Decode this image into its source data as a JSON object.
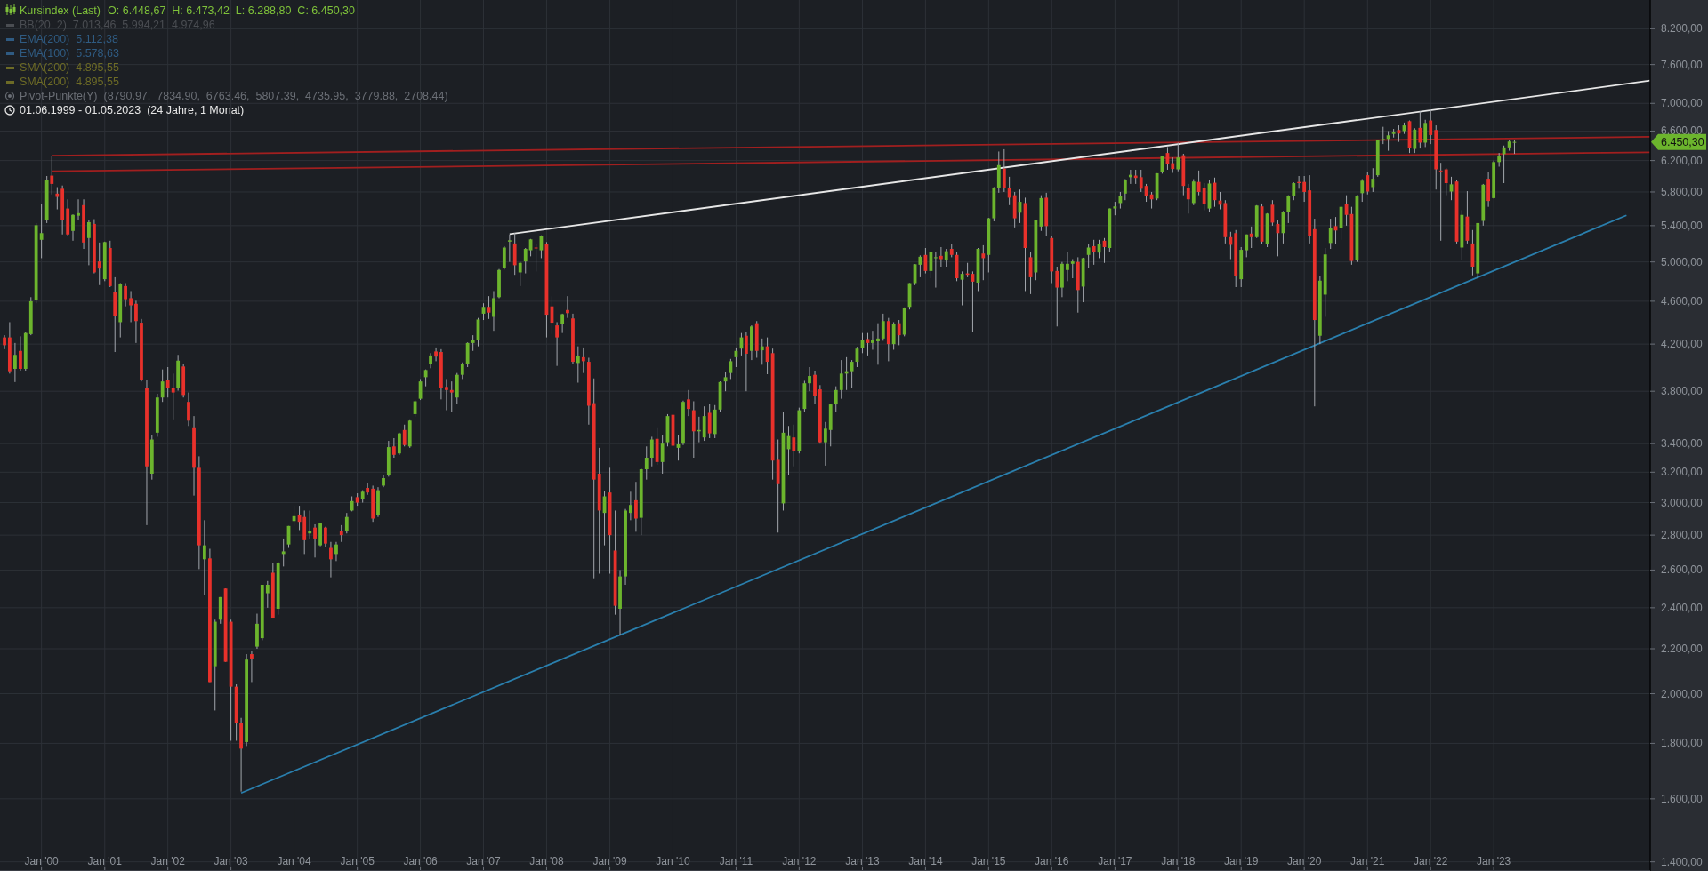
{
  "chart_data": {
    "type": "candlestick",
    "title": "Kursindex (Last)",
    "subtitle": "O: 6.448,67  H: 6.473,42  L: 6.288,80  C: 6.450,30",
    "log": true,
    "grid": true,
    "xlim": [
      "1999-05-06",
      "2025-06-24"
    ],
    "xticks": [
      {
        "value": "2000-01",
        "label": "Jan '00"
      },
      {
        "value": "2001-01",
        "label": "Jan '01"
      },
      {
        "value": "2002-01",
        "label": "Jan '02"
      },
      {
        "value": "2003-01",
        "label": "Jan '03"
      },
      {
        "value": "2004-01",
        "label": "Jan '04"
      },
      {
        "value": "2005-01",
        "label": "Jan '05"
      },
      {
        "value": "2006-01",
        "label": "Jan '06"
      },
      {
        "value": "2007-01",
        "label": "Jan '07"
      },
      {
        "value": "2008-01",
        "label": "Jan '08"
      },
      {
        "value": "2009-01",
        "label": "Jan '09"
      },
      {
        "value": "2010-01",
        "label": "Jan '10"
      },
      {
        "value": "2011-01",
        "label": "Jan '11"
      },
      {
        "value": "2012-01",
        "label": "Jan '12"
      },
      {
        "value": "2013-01",
        "label": "Jan '13"
      },
      {
        "value": "2014-01",
        "label": "Jan '14"
      },
      {
        "value": "2015-01",
        "label": "Jan '15"
      },
      {
        "value": "2016-01",
        "label": "Jan '16"
      },
      {
        "value": "2017-01",
        "label": "Jan '17"
      },
      {
        "value": "2018-01",
        "label": "Jan '18"
      },
      {
        "value": "2019-01",
        "label": "Jan '19"
      },
      {
        "value": "2020-01",
        "label": "Jan '20"
      },
      {
        "value": "2021-01",
        "label": "Jan '21"
      },
      {
        "value": "2022-01",
        "label": "Jan '22"
      },
      {
        "value": "2023-01",
        "label": "Jan '23"
      }
    ],
    "ylim": [
      1373,
      8716
    ],
    "yticks": [
      {
        "value": 1400,
        "label": "1.400,00"
      },
      {
        "value": 1600,
        "label": "1.600,00"
      },
      {
        "value": 1800,
        "label": "1.800,00"
      },
      {
        "value": 2000,
        "label": "2.000,00"
      },
      {
        "value": 2200,
        "label": "2.200,00"
      },
      {
        "value": 2400,
        "label": "2.400,00"
      },
      {
        "value": 2600,
        "label": "2.600,00"
      },
      {
        "value": 2800,
        "label": "2.800,00"
      },
      {
        "value": 3000,
        "label": "3.000,00"
      },
      {
        "value": 3200,
        "label": "3.200,00"
      },
      {
        "value": 3400,
        "label": "3.400,00"
      },
      {
        "value": 3800,
        "label": "3.800,00"
      },
      {
        "value": 4200,
        "label": "4.200,00"
      },
      {
        "value": 4600,
        "label": "4.600,00"
      },
      {
        "value": 5000,
        "label": "5.000,00"
      },
      {
        "value": 5400,
        "label": "5.400,00"
      },
      {
        "value": 5800,
        "label": "5.800,00"
      },
      {
        "value": 6200,
        "label": "6.200,00"
      },
      {
        "value": 6600,
        "label": "6.600,00"
      },
      {
        "value": 7000,
        "label": "7.000,00"
      },
      {
        "value": 7600,
        "label": "7.600,00"
      },
      {
        "value": 8200,
        "label": "8.200,00"
      }
    ],
    "annotations": [
      "BB(20, 2)  7.013,46  5.994,21  4.974,96",
      "EMA(200)  5.112,38",
      "EMA(100)  5.578,63",
      "SMA(200)  4.895,55",
      "SMA(200)  4.895,55",
      "Pivot-Punkte(Y)  (8790.97,  7834.90,  6763.46,  5807.39,  4735.95,  3779.88,  2708.44)",
      "01.06.1999 - 01.05.2023  (24 Jahre, 1 Monat)",
      "6.450,30"
    ],
    "series": [
      {
        "type": "line",
        "color": "#a11f1f",
        "x": [
          "2000-03",
          "2025-06-24"
        ],
        "values": [
          6265,
          6520
        ]
      },
      {
        "type": "line",
        "color": "#a11f1f",
        "x": [
          "2000-03",
          "2025-06-24"
        ],
        "values": [
          6060,
          6310
        ]
      },
      {
        "type": "line",
        "color": "#e6e6e6",
        "x": [
          "2007-06",
          "2025-06-24"
        ],
        "values": [
          5303,
          7346
        ]
      },
      {
        "type": "line",
        "color": "#2a7fad",
        "x": [
          "2003-03",
          "2025-02-07"
        ],
        "values": [
          1620,
          5520
        ]
      },
      {
        "color": "#6cb52d",
        "x": [
          "1999-08",
          "1999-10",
          "1999-11",
          "1999-12",
          "2000-01",
          "2000-02",
          "2000-07",
          "2000-08",
          "2000-10",
          "2001-01",
          "2001-04",
          "2001-10",
          "2001-11",
          "2001-12",
          "2002-03",
          "2002-08",
          "2002-10",
          "2002-11",
          "2003-04",
          "2003-06",
          "2003-07",
          "2003-08",
          "2003-10",
          "2003-11",
          "2003-12",
          "2004-01",
          "2004-04",
          "2004-06",
          "2004-09",
          "2004-11",
          "2004-12",
          "2005-02",
          "2005-05",
          "2005-06",
          "2005-07",
          "2005-09",
          "2005-11",
          "2005-12",
          "2006-01",
          "2006-02",
          "2006-03",
          "2006-08",
          "2006-09",
          "2006-10",
          "2006-11",
          "2006-12",
          "2007-01",
          "2007-03",
          "2007-04",
          "2007-05",
          "2007-06",
          "2007-08",
          "2007-09",
          "2007-10",
          "2007-12",
          "2008-04",
          "2008-07",
          "2008-12",
          "2009-03",
          "2009-04",
          "2009-05",
          "2009-07",
          "2009-08",
          "2009-09",
          "2009-11",
          "2009-12",
          "2010-02",
          "2010-03",
          "2010-06",
          "2010-07",
          "2010-09",
          "2010-10",
          "2010-11",
          "2010-12",
          "2011-01",
          "2011-02",
          "2011-04",
          "2011-06",
          "2011-10",
          "2011-11",
          "2012-01",
          "2012-02",
          "2012-03",
          "2012-06",
          "2012-07",
          "2012-08",
          "2012-09",
          "2012-10",
          "2012-11",
          "2012-12",
          "2013-01",
          "2013-03",
          "2013-04",
          "2013-05",
          "2013-07",
          "2013-09",
          "2013-10",
          "2013-11",
          "2013-12",
          "2014-02",
          "2014-03",
          "2014-05",
          "2014-08",
          "2014-11",
          "2015-01",
          "2015-02",
          "2015-03",
          "2015-07",
          "2015-10",
          "2015-11",
          "2016-03",
          "2016-04",
          "2016-05",
          "2016-07",
          "2016-08",
          "2016-10",
          "2016-12",
          "2017-01",
          "2017-02",
          "2017-03",
          "2017-04",
          "2017-09",
          "2017-10",
          "2018-01",
          "2018-04",
          "2018-07",
          "2019-01",
          "2019-02",
          "2019-04",
          "2019-06",
          "2019-09",
          "2019-10",
          "2019-11",
          "2020-04",
          "2020-05",
          "2020-06",
          "2020-08",
          "2020-11",
          "2020-12",
          "2021-02",
          "2021-03",
          "2021-04",
          "2021-05",
          "2021-06",
          "2021-08",
          "2021-10",
          "2021-12",
          "2022-05",
          "2022-07",
          "2022-10",
          "2022-11",
          "2023-01",
          "2023-02",
          "2023-03",
          "2023-04",
          "2023-05"
        ],
        "ohlc": [
          [
            3985,
            4210,
            3875,
            4105
          ],
          [
            3985,
            4310,
            3970,
            4300
          ],
          [
            4290,
            4640,
            4280,
            4600
          ],
          [
            4610,
            5430,
            4580,
            5405
          ],
          [
            5240,
            5650,
            5040,
            5315
          ],
          [
            5470,
            6000,
            5430,
            5945
          ],
          [
            5340,
            5530,
            5230,
            5525
          ],
          [
            5515,
            5710,
            5460,
            5545
          ],
          [
            5260,
            5460,
            4965,
            5440
          ],
          [
            4820,
            5220,
            4800,
            5215
          ],
          [
            4400,
            4780,
            4260,
            4770
          ],
          [
            3190,
            3460,
            3150,
            3430
          ],
          [
            3480,
            3780,
            3450,
            3750
          ],
          [
            3750,
            3980,
            3715,
            3880
          ],
          [
            3825,
            4105,
            3805,
            4055
          ],
          [
            2660,
            2890,
            2465,
            2740
          ],
          [
            2120,
            2340,
            1930,
            2330
          ],
          [
            2340,
            2455,
            2320,
            2455
          ],
          [
            1805,
            2175,
            1790,
            2150
          ],
          [
            2210,
            2370,
            2200,
            2320
          ],
          [
            2250,
            2520,
            2240,
            2520
          ],
          [
            2475,
            2540,
            2400,
            2520
          ],
          [
            2395,
            2645,
            2365,
            2640
          ],
          [
            2690,
            2780,
            2620,
            2705
          ],
          [
            2745,
            2855,
            2725,
            2855
          ],
          [
            2885,
            2980,
            2855,
            2915
          ],
          [
            2810,
            2950,
            2780,
            2825
          ],
          [
            2740,
            2870,
            2735,
            2870
          ],
          [
            2690,
            2760,
            2650,
            2745
          ],
          [
            2825,
            2935,
            2810,
            2910
          ],
          [
            2950,
            3040,
            2945,
            3010
          ],
          [
            3020,
            3080,
            3000,
            3070
          ],
          [
            2920,
            3100,
            2910,
            3080
          ],
          [
            3110,
            3180,
            3100,
            3160
          ],
          [
            3180,
            3420,
            3170,
            3375
          ],
          [
            3330,
            3480,
            3320,
            3475
          ],
          [
            3380,
            3580,
            3370,
            3570
          ],
          [
            3620,
            3730,
            3600,
            3720
          ],
          [
            3740,
            3900,
            3730,
            3880
          ],
          [
            3915,
            3980,
            3840,
            3975
          ],
          [
            4025,
            4120,
            3990,
            4100
          ],
          [
            3750,
            3950,
            3700,
            3935
          ],
          [
            3935,
            4040,
            3900,
            4025
          ],
          [
            4025,
            4215,
            4000,
            4210
          ],
          [
            4210,
            4280,
            4140,
            4240
          ],
          [
            4240,
            4440,
            4180,
            4425
          ],
          [
            4480,
            4580,
            4420,
            4545
          ],
          [
            4450,
            4700,
            4320,
            4630
          ],
          [
            4640,
            4925,
            4630,
            4915
          ],
          [
            4940,
            5170,
            4920,
            5155
          ],
          [
            5220,
            5300,
            5000,
            5235
          ],
          [
            4890,
            5000,
            4750,
            4990
          ],
          [
            5005,
            5150,
            4880,
            5140
          ],
          [
            5125,
            5250,
            5060,
            5245
          ],
          [
            5125,
            5290,
            5040,
            5285
          ],
          [
            4380,
            4480,
            4300,
            4475
          ],
          [
            4035,
            4180,
            3870,
            4095
          ],
          [
            2935,
            3075,
            2740,
            3040
          ],
          [
            2395,
            2600,
            2265,
            2565
          ],
          [
            2565,
            2960,
            2520,
            2950
          ],
          [
            2935,
            3070,
            2890,
            2985
          ],
          [
            2905,
            3225,
            2800,
            3220
          ],
          [
            3220,
            3380,
            3150,
            3300
          ],
          [
            3300,
            3450,
            3240,
            3430
          ],
          [
            3270,
            3460,
            3190,
            3400
          ],
          [
            3410,
            3620,
            3380,
            3605
          ],
          [
            3370,
            3465,
            3280,
            3395
          ],
          [
            3400,
            3725,
            3390,
            3715
          ],
          [
            3490,
            3600,
            3410,
            3500
          ],
          [
            3445,
            3680,
            3420,
            3605
          ],
          [
            3470,
            3690,
            3440,
            3655
          ],
          [
            3655,
            3880,
            3640,
            3875
          ],
          [
            3880,
            3960,
            3800,
            3915
          ],
          [
            3950,
            4070,
            3900,
            4050
          ],
          [
            4085,
            4170,
            4000,
            4140
          ],
          [
            4160,
            4300,
            4100,
            4260
          ],
          [
            4140,
            4370,
            4060,
            4360
          ],
          [
            4145,
            4250,
            4020,
            4180
          ],
          [
            2995,
            3640,
            2950,
            3480
          ],
          [
            3360,
            3530,
            3180,
            3455
          ],
          [
            3345,
            3670,
            3330,
            3650
          ],
          [
            3660,
            3885,
            3640,
            3865
          ],
          [
            3865,
            4000,
            3800,
            3925
          ],
          [
            3410,
            3560,
            3245,
            3510
          ],
          [
            3500,
            3700,
            3380,
            3695
          ],
          [
            3695,
            3840,
            3640,
            3810
          ],
          [
            3810,
            4060,
            3740,
            3945
          ],
          [
            3945,
            4085,
            3810,
            3965
          ],
          [
            3965,
            4060,
            3830,
            4045
          ],
          [
            4045,
            4175,
            4000,
            4160
          ],
          [
            4165,
            4300,
            4120,
            4240
          ],
          [
            4210,
            4320,
            4150,
            4240
          ],
          [
            4225,
            4390,
            4020,
            4250
          ],
          [
            4250,
            4480,
            4230,
            4410
          ],
          [
            4200,
            4400,
            4150,
            4380
          ],
          [
            4285,
            4540,
            4270,
            4535
          ],
          [
            4545,
            4780,
            4520,
            4780
          ],
          [
            4780,
            4975,
            4760,
            4975
          ],
          [
            4970,
            5070,
            4840,
            5055
          ],
          [
            4905,
            5110,
            4830,
            5105
          ],
          [
            5040,
            5110,
            4735,
            5050
          ],
          [
            5015,
            5140,
            4950,
            5115
          ],
          [
            4815,
            4900,
            4560,
            4875
          ],
          [
            4785,
            5150,
            4700,
            5140
          ],
          [
            5075,
            5490,
            4890,
            5485
          ],
          [
            5485,
            5860,
            5450,
            5855
          ],
          [
            5855,
            6320,
            5790,
            6140
          ],
          [
            5550,
            5830,
            5430,
            5680
          ],
          [
            4890,
            5465,
            4810,
            5460
          ],
          [
            5390,
            5760,
            5340,
            5725
          ],
          [
            4735,
            5000,
            4640,
            4980
          ],
          [
            4915,
            5110,
            4800,
            4980
          ],
          [
            4980,
            5030,
            4830,
            5005
          ],
          [
            4745,
            5045,
            4590,
            5040
          ],
          [
            5075,
            5190,
            4940,
            5155
          ],
          [
            5100,
            5240,
            5040,
            5190
          ],
          [
            5150,
            5600,
            5110,
            5600
          ],
          [
            5600,
            5680,
            5520,
            5625
          ],
          [
            5665,
            5800,
            5600,
            5750
          ],
          [
            5780,
            5960,
            5700,
            5955
          ],
          [
            5985,
            6080,
            5900,
            6015
          ],
          [
            5720,
            6035,
            5700,
            6035
          ],
          [
            6050,
            6255,
            6030,
            6255
          ],
          [
            6085,
            6440,
            6060,
            6240
          ],
          [
            5665,
            5960,
            5640,
            5930
          ],
          [
            5600,
            5950,
            5560,
            5905
          ],
          [
            4820,
            5160,
            4740,
            5130
          ],
          [
            5125,
            5300,
            5050,
            5300
          ],
          [
            5270,
            5640,
            5260,
            5635
          ],
          [
            5195,
            5545,
            5160,
            5540
          ],
          [
            5315,
            5570,
            5200,
            5555
          ],
          [
            5555,
            5760,
            5430,
            5755
          ],
          [
            5755,
            5920,
            5700,
            5910
          ],
          [
            4275,
            4850,
            4200,
            4805
          ],
          [
            4665,
            5150,
            4450,
            5080
          ],
          [
            5205,
            5480,
            5140,
            5375
          ],
          [
            5375,
            5630,
            5240,
            5620
          ],
          [
            5020,
            5760,
            5000,
            5755
          ],
          [
            5785,
            5960,
            5680,
            5940
          ],
          [
            5860,
            6100,
            5800,
            5965
          ],
          [
            6010,
            6480,
            5990,
            6475
          ],
          [
            6470,
            6660,
            6420,
            6490
          ],
          [
            6490,
            6600,
            6330,
            6540
          ],
          [
            6560,
            6630,
            6510,
            6580
          ],
          [
            6600,
            6720,
            6560,
            6680
          ],
          [
            6355,
            6640,
            6300,
            6620
          ],
          [
            6440,
            6760,
            6380,
            6715
          ],
          [
            5805,
            5990,
            5700,
            5895
          ],
          [
            5155,
            5580,
            5020,
            5525
          ],
          [
            4880,
            5430,
            4830,
            5430
          ],
          [
            5455,
            5900,
            5400,
            5890
          ],
          [
            5725,
            6200,
            5720,
            6180
          ],
          [
            6180,
            6300,
            6120,
            6265
          ],
          [
            6285,
            6400,
            5910,
            6375
          ],
          [
            6375,
            6470,
            6330,
            6455
          ],
          [
            6448.67,
            6473.42,
            6288.8,
            6450.3
          ]
        ]
      },
      {
        "color": "#e8312b",
        "x": [
          "1999-06",
          "1999-07",
          "1999-09",
          "2000-03",
          "2000-04",
          "2000-05",
          "2000-06",
          "2000-09",
          "2000-11",
          "2000-12",
          "2001-02",
          "2001-03",
          "2001-05",
          "2001-06",
          "2001-07",
          "2001-08",
          "2001-09",
          "2002-01",
          "2002-02",
          "2002-04",
          "2002-05",
          "2002-06",
          "2002-07",
          "2002-09",
          "2002-12",
          "2003-01",
          "2003-02",
          "2003-03",
          "2003-05",
          "2003-09",
          "2004-02",
          "2004-03",
          "2004-05",
          "2004-07",
          "2004-08",
          "2004-10",
          "2005-01",
          "2005-03",
          "2005-04",
          "2005-08",
          "2005-10",
          "2006-04",
          "2006-05",
          "2006-06",
          "2006-07",
          "2007-02",
          "2007-07",
          "2007-11",
          "2008-01",
          "2008-02",
          "2008-03",
          "2008-05",
          "2008-06",
          "2008-08",
          "2008-09",
          "2008-10",
          "2008-11",
          "2009-01",
          "2009-02",
          "2009-06",
          "2009-10",
          "2010-01",
          "2010-04",
          "2010-05",
          "2010-08",
          "2011-03",
          "2011-05",
          "2011-07",
          "2011-08",
          "2011-09",
          "2011-12",
          "2012-04",
          "2012-05",
          "2013-02",
          "2013-06",
          "2013-08",
          "2014-01",
          "2014-04",
          "2014-06",
          "2014-07",
          "2014-09",
          "2014-10",
          "2014-12",
          "2015-04",
          "2015-05",
          "2015-06",
          "2015-08",
          "2015-09",
          "2015-12",
          "2016-01",
          "2016-02",
          "2016-06",
          "2016-09",
          "2016-11",
          "2017-05",
          "2017-06",
          "2017-07",
          "2017-08",
          "2017-11",
          "2017-12",
          "2018-02",
          "2018-03",
          "2018-05",
          "2018-06",
          "2018-08",
          "2018-09",
          "2018-10",
          "2018-11",
          "2018-12",
          "2019-03",
          "2019-05",
          "2019-07",
          "2019-08",
          "2019-12",
          "2020-01",
          "2020-02",
          "2020-03",
          "2020-07",
          "2020-09",
          "2020-10",
          "2021-01",
          "2021-07",
          "2021-09",
          "2021-11",
          "2022-01",
          "2022-02",
          "2022-03",
          "2022-04",
          "2022-06",
          "2022-08",
          "2022-09",
          "2022-12"
        ],
        "ohlc": [
          [
            4260,
            4280,
            4155,
            4190
          ],
          [
            4260,
            4400,
            3945,
            3965
          ],
          [
            4140,
            4270,
            3970,
            3985
          ],
          [
            6005,
            6260,
            5770,
            5900
          ],
          [
            5780,
            5860,
            5590,
            5740
          ],
          [
            5840,
            5880,
            5300,
            5460
          ],
          [
            5600,
            5710,
            5280,
            5300
          ],
          [
            5640,
            5710,
            5140,
            5210
          ],
          [
            5420,
            5475,
            4880,
            4890
          ],
          [
            5005,
            5210,
            4760,
            4930
          ],
          [
            5150,
            5230,
            4740,
            4750
          ],
          [
            4690,
            4840,
            4130,
            4460
          ],
          [
            4750,
            4780,
            4550,
            4620
          ],
          [
            4630,
            4700,
            4400,
            4560
          ],
          [
            4575,
            4605,
            4210,
            4410
          ],
          [
            4395,
            4430,
            3880,
            3890
          ],
          [
            3825,
            3890,
            2860,
            3240
          ],
          [
            3890,
            4000,
            3750,
            3830
          ],
          [
            3830,
            3945,
            3580,
            3790
          ],
          [
            4005,
            4025,
            3750,
            3770
          ],
          [
            3715,
            3790,
            3530,
            3570
          ],
          [
            3520,
            3605,
            3045,
            3230
          ],
          [
            3230,
            3310,
            2605,
            2740
          ],
          [
            2665,
            2720,
            2050,
            2050
          ],
          [
            2500,
            2500,
            2140,
            2140
          ],
          [
            2330,
            2340,
            1810,
            2030
          ],
          [
            2030,
            2040,
            1810,
            1880
          ],
          [
            1880,
            1900,
            1625,
            1780
          ],
          [
            2175,
            2190,
            2050,
            2155
          ],
          [
            2585,
            2640,
            2350,
            2350
          ],
          [
            2925,
            2980,
            2830,
            2880
          ],
          [
            2910,
            2950,
            2690,
            2770
          ],
          [
            2845,
            2865,
            2670,
            2780
          ],
          [
            2845,
            2850,
            2730,
            2750
          ],
          [
            2725,
            2760,
            2560,
            2660
          ],
          [
            2825,
            2860,
            2760,
            2800
          ],
          [
            3035,
            3060,
            2980,
            3000
          ],
          [
            3095,
            3130,
            3050,
            3065
          ],
          [
            3090,
            3110,
            2880,
            2900
          ],
          [
            3380,
            3440,
            3300,
            3320
          ],
          [
            3500,
            3540,
            3380,
            3390
          ],
          [
            4135,
            4170,
            4050,
            4090
          ],
          [
            4130,
            4155,
            3735,
            3825
          ],
          [
            3835,
            3900,
            3650,
            3810
          ],
          [
            3810,
            3880,
            3640,
            3790
          ],
          [
            4545,
            4650,
            4430,
            4490
          ],
          [
            5200,
            5315,
            4865,
            4965
          ],
          [
            5155,
            5190,
            4900,
            5145
          ],
          [
            5195,
            5215,
            4260,
            4470
          ],
          [
            4550,
            4650,
            4290,
            4395
          ],
          [
            4370,
            4400,
            4010,
            4260
          ],
          [
            4515,
            4650,
            4440,
            4485
          ],
          [
            4435,
            4480,
            4030,
            4045
          ],
          [
            4085,
            4170,
            3950,
            4050
          ],
          [
            4045,
            4080,
            3540,
            3685
          ],
          [
            3705,
            3905,
            2555,
            3150
          ],
          [
            3190,
            3370,
            2580,
            2950
          ],
          [
            3065,
            3230,
            2580,
            2800
          ],
          [
            2710,
            2950,
            2365,
            2410
          ],
          [
            3015,
            3135,
            2820,
            2900
          ],
          [
            3435,
            3520,
            3250,
            3270
          ],
          [
            3615,
            3700,
            3370,
            3385
          ],
          [
            3735,
            3810,
            3605,
            3660
          ],
          [
            3650,
            3720,
            3300,
            3490
          ],
          [
            3630,
            3700,
            3440,
            3475
          ],
          [
            4275,
            4310,
            3800,
            4115
          ],
          [
            4390,
            4410,
            4080,
            4140
          ],
          [
            4180,
            4260,
            3940,
            4045
          ],
          [
            4120,
            4160,
            3150,
            3280
          ],
          [
            3285,
            3430,
            2815,
            3120
          ],
          [
            3445,
            3540,
            3240,
            3345
          ],
          [
            3935,
            3970,
            3700,
            3760
          ],
          [
            3815,
            3850,
            3400,
            3410
          ],
          [
            4245,
            4300,
            4100,
            4210
          ],
          [
            4410,
            4440,
            4050,
            4200
          ],
          [
            4390,
            4420,
            4190,
            4280
          ],
          [
            5075,
            5150,
            4880,
            4905
          ],
          [
            5065,
            5160,
            4950,
            5030
          ],
          [
            5140,
            5190,
            5050,
            5075
          ],
          [
            5075,
            5110,
            4800,
            4830
          ],
          [
            4880,
            4990,
            4840,
            4865
          ],
          [
            4875,
            4900,
            4310,
            4795
          ],
          [
            5090,
            5180,
            4810,
            5040
          ],
          [
            6095,
            6350,
            5800,
            5855
          ],
          [
            5855,
            5990,
            5640,
            5730
          ],
          [
            5760,
            5800,
            5380,
            5485
          ],
          [
            5665,
            5730,
            4700,
            5150
          ],
          [
            5050,
            5110,
            4670,
            4840
          ],
          [
            5730,
            5790,
            5280,
            5395
          ],
          [
            5260,
            5280,
            4780,
            4900
          ],
          [
            4905,
            4950,
            4360,
            4735
          ],
          [
            5000,
            5050,
            4490,
            4710
          ],
          [
            5170,
            5240,
            4970,
            5105
          ],
          [
            5230,
            5260,
            4990,
            5160
          ],
          [
            6005,
            6080,
            5900,
            5975
          ],
          [
            5985,
            6080,
            5800,
            5840
          ],
          [
            5875,
            5900,
            5680,
            5750
          ],
          [
            5770,
            5800,
            5600,
            5710
          ],
          [
            6300,
            6380,
            6080,
            6150
          ],
          [
            6165,
            6240,
            6040,
            6090
          ],
          [
            6270,
            6290,
            5760,
            5875
          ],
          [
            5855,
            5900,
            5540,
            5710
          ],
          [
            5925,
            6070,
            5760,
            5800
          ],
          [
            5845,
            5910,
            5580,
            5655
          ],
          [
            5915,
            5980,
            5620,
            5700
          ],
          [
            5695,
            5800,
            5590,
            5645
          ],
          [
            5665,
            5700,
            5200,
            5270
          ],
          [
            5270,
            5330,
            5030,
            5185
          ],
          [
            5315,
            5350,
            4740,
            4855
          ],
          [
            5310,
            5390,
            5150,
            5270
          ],
          [
            5625,
            5660,
            5190,
            5220
          ],
          [
            5645,
            5700,
            5400,
            5435
          ],
          [
            5420,
            5470,
            5060,
            5315
          ],
          [
            5925,
            6000,
            5840,
            5910
          ],
          [
            5925,
            6000,
            5680,
            5800
          ],
          [
            5820,
            6010,
            5200,
            5285
          ],
          [
            5360,
            5480,
            3680,
            4420
          ],
          [
            5395,
            5500,
            5190,
            5345
          ],
          [
            5650,
            5760,
            5400,
            5525
          ],
          [
            5535,
            5620,
            4970,
            5010
          ],
          [
            6010,
            6050,
            5770,
            5805
          ],
          [
            6615,
            6680,
            6450,
            6565
          ],
          [
            6740,
            6750,
            6300,
            6365
          ],
          [
            6645,
            6880,
            6360,
            6440
          ],
          [
            6750,
            6910,
            6420,
            6545
          ],
          [
            6615,
            6680,
            5830,
            6085
          ],
          [
            6070,
            6170,
            5230,
            6065
          ],
          [
            6085,
            6100,
            5760,
            5910
          ],
          [
            5930,
            5950,
            5200,
            5220
          ],
          [
            5505,
            5810,
            5200,
            5230
          ],
          [
            5200,
            5350,
            4860,
            4950
          ],
          [
            5965,
            6050,
            5620,
            5690
          ]
        ]
      }
    ]
  }
}
